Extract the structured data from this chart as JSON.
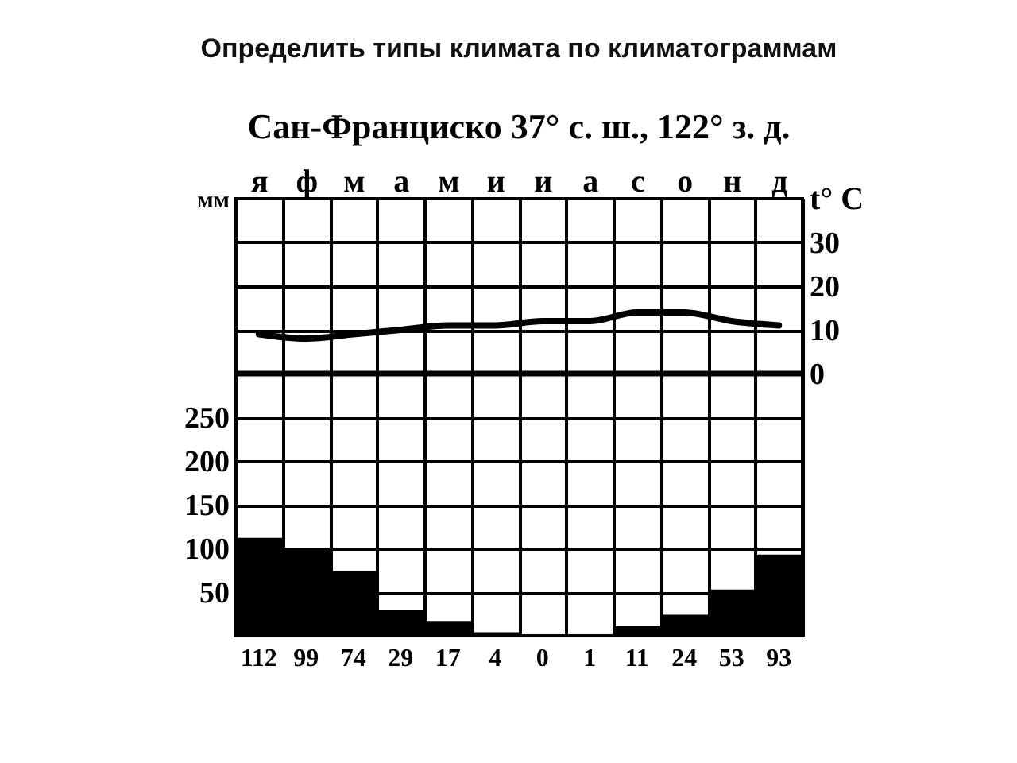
{
  "chart_data": {
    "type": "bar",
    "title": "Определить типы климата по климатограммам",
    "subtitle": "Сан-Франциско 37° с. ш., 122° з. д.",
    "ylabel": "мм",
    "y2label": "t° C",
    "categories": [
      "я",
      "ф",
      "м",
      "а",
      "м",
      "и",
      "и",
      "а",
      "с",
      "о",
      "н",
      "д"
    ],
    "series": [
      {
        "color": "#000000",
        "values": [
          112,
          99,
          74,
          29,
          17,
          4,
          0,
          1,
          11,
          24,
          53,
          93
        ],
        "value_labels": [
          "112",
          "99",
          "74",
          "29",
          "17",
          "4",
          "0",
          "1",
          "11",
          "24",
          "53",
          "93"
        ]
      },
      {
        "type": "line",
        "axis": "y2",
        "color": "#000000",
        "values": [
          9,
          8,
          9,
          10,
          11,
          11,
          12,
          12,
          14,
          14,
          12,
          11
        ]
      }
    ],
    "ylim": [
      0,
      500
    ],
    "yticks": [
      50,
      100,
      150,
      200,
      250
    ],
    "y2lim": [
      -60,
      40
    ],
    "y2ticks": [
      0,
      10,
      20,
      30
    ],
    "ref_lines": [
      {
        "axis": "y2",
        "value": 0,
        "color": "#000000"
      }
    ],
    "grid": true
  }
}
